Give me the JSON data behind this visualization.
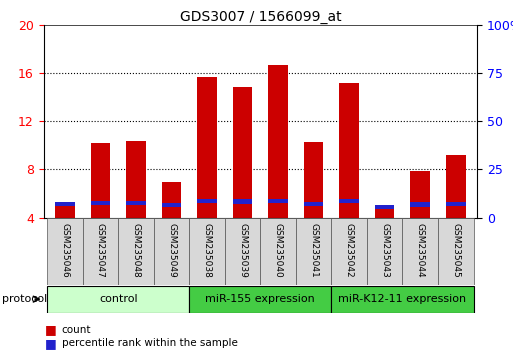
{
  "title": "GDS3007 / 1566099_at",
  "samples": [
    "GSM235046",
    "GSM235047",
    "GSM235048",
    "GSM235049",
    "GSM235038",
    "GSM235039",
    "GSM235040",
    "GSM235041",
    "GSM235042",
    "GSM235043",
    "GSM235044",
    "GSM235045"
  ],
  "count_values": [
    5.3,
    10.2,
    10.4,
    7.0,
    15.7,
    14.8,
    16.7,
    10.3,
    15.2,
    4.9,
    7.9,
    9.2
  ],
  "percentile_values": [
    7.0,
    7.5,
    7.6,
    6.5,
    8.5,
    8.4,
    8.5,
    7.3,
    8.5,
    5.4,
    6.9,
    7.3
  ],
  "ylim_left": [
    4,
    20
  ],
  "ylim_right": [
    0,
    100
  ],
  "yticks_left": [
    4,
    8,
    12,
    16,
    20
  ],
  "yticks_right": [
    0,
    25,
    50,
    75,
    100
  ],
  "bar_color": "#cc0000",
  "percentile_color": "#2222cc",
  "bar_width": 0.55,
  "group_defs": [
    [
      0,
      3,
      "control",
      "#ccffcc"
    ],
    [
      4,
      7,
      "miR-155 expression",
      "#44cc44"
    ],
    [
      8,
      11,
      "miR-K12-11 expression",
      "#44cc44"
    ]
  ],
  "protocol_label": "protocol",
  "legend_count": "count",
  "legend_percentile": "percentile rank within the sample",
  "background_color": "#ffffff",
  "title_fontsize": 10,
  "axis_label_fontsize": 8,
  "sample_fontsize": 6.5,
  "group_fontsize": 8,
  "legend_fontsize": 7.5
}
